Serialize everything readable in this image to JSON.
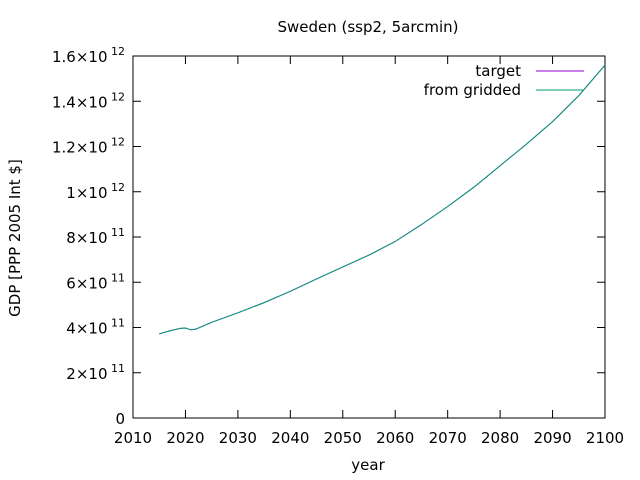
{
  "chart_data": {
    "type": "line",
    "title": "Sweden (ssp2, 5arcmin)",
    "xlabel": "year",
    "ylabel": "GDP [PPP 2005 Int $]",
    "xlim": [
      2010,
      2100
    ],
    "ylim": [
      0,
      1600000000000
    ],
    "xticks": [
      2010,
      2020,
      2030,
      2040,
      2050,
      2060,
      2070,
      2080,
      2090,
      2100
    ],
    "yticks": [
      {
        "value": 0,
        "mantissa": "0",
        "exponent": ""
      },
      {
        "value": 200000000000,
        "mantissa": "2×10",
        "exponent": "11"
      },
      {
        "value": 400000000000,
        "mantissa": "4×10",
        "exponent": "11"
      },
      {
        "value": 600000000000,
        "mantissa": "6×10",
        "exponent": "11"
      },
      {
        "value": 800000000000,
        "mantissa": "8×10",
        "exponent": "11"
      },
      {
        "value": 1000000000000,
        "mantissa": "1×10",
        "exponent": "12"
      },
      {
        "value": 1200000000000,
        "mantissa": "1.2×10",
        "exponent": "12"
      },
      {
        "value": 1400000000000,
        "mantissa": "1.4×10",
        "exponent": "12"
      },
      {
        "value": 1600000000000,
        "mantissa": "1.6×10",
        "exponent": "12"
      }
    ],
    "grid": false,
    "legend_position": "top-right",
    "x": [
      2015,
      2017,
      2019,
      2020,
      2021,
      2022,
      2025,
      2030,
      2035,
      2040,
      2045,
      2050,
      2055,
      2060,
      2065,
      2070,
      2075,
      2080,
      2085,
      2090,
      2095,
      2100
    ],
    "series": [
      {
        "name": "target",
        "color": "#9400d3",
        "values": [
          372000000000,
          385000000000,
          396000000000,
          398000000000,
          390000000000,
          393000000000,
          423000000000,
          465000000000,
          510000000000,
          560000000000,
          615000000000,
          668000000000,
          720000000000,
          780000000000,
          855000000000,
          935000000000,
          1020000000000,
          1115000000000,
          1210000000000,
          1310000000000,
          1425000000000,
          1560000000000
        ]
      },
      {
        "name": "from gridded",
        "color": "#009e73",
        "values": [
          372000000000,
          385000000000,
          396000000000,
          398000000000,
          390000000000,
          393000000000,
          423000000000,
          465000000000,
          510000000000,
          560000000000,
          615000000000,
          668000000000,
          720000000000,
          780000000000,
          855000000000,
          935000000000,
          1020000000000,
          1115000000000,
          1210000000000,
          1310000000000,
          1425000000000,
          1560000000000
        ]
      }
    ]
  }
}
